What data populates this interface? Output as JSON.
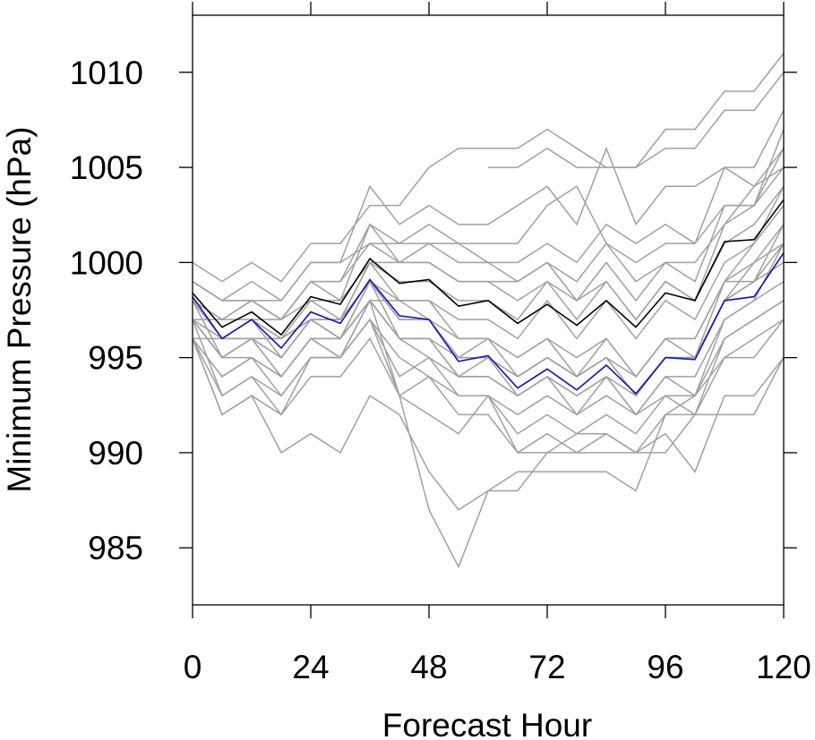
{
  "chart_data": {
    "type": "line",
    "title": "",
    "xlabel": "Forecast Hour",
    "ylabel": "Minimum Pressure (hPa)",
    "xlim": [
      0,
      120
    ],
    "ylim": [
      982,
      1013
    ],
    "x_ticks": [
      0,
      24,
      48,
      72,
      96,
      120
    ],
    "y_ticks": [
      985,
      990,
      995,
      1000,
      1005,
      1010
    ],
    "grid": false,
    "legend": "none",
    "x": [
      0,
      6,
      12,
      18,
      24,
      30,
      36,
      42,
      48,
      54,
      60,
      66,
      72,
      78,
      84,
      90,
      96,
      102,
      108,
      114,
      120
    ],
    "colors": {
      "ensemble": "#a0a0a0",
      "black_series": "#000000",
      "blue_series": "#1010c8",
      "axis": "#000000"
    },
    "series": [
      {
        "color": "black",
        "values": [
          998.4,
          996.6,
          997.4,
          996.2,
          998.2,
          997.8,
          1000.2,
          998.9,
          999.1,
          997.7,
          998.0,
          996.8,
          997.8,
          996.7,
          998.0,
          996.6,
          998.4,
          998.0,
          1001.1,
          1001.2,
          1003.3
        ]
      },
      {
        "color": "blue",
        "values": [
          998.2,
          996.0,
          997.0,
          995.5,
          997.4,
          996.8,
          999.1,
          997.2,
          997.0,
          994.8,
          995.1,
          993.4,
          994.4,
          993.3,
          994.6,
          993.1,
          995.0,
          994.9,
          998.0,
          998.2,
          1000.5
        ]
      },
      {
        "color": "gray",
        "values": [
          1000,
          999,
          1000,
          999,
          1001,
          1001,
          1003,
          1003,
          1005,
          1006,
          1006,
          1006,
          1007,
          1006,
          1005,
          1005,
          1007,
          1007,
          1009,
          1009,
          1011
        ]
      },
      {
        "color": "gray",
        "values": [
          null,
          null,
          null,
          null,
          null,
          null,
          null,
          null,
          null,
          null,
          1005,
          1005,
          1006,
          1005,
          1005,
          1005,
          1006,
          1006,
          1008,
          1008,
          1010
        ]
      },
      {
        "color": "gray",
        "values": [
          999,
          998,
          998,
          998,
          1000,
          1000,
          1004,
          1002,
          1003,
          1002,
          1002,
          1003,
          1004,
          1002,
          1006,
          1002,
          1004,
          1004,
          1005,
          1005,
          1008
        ]
      },
      {
        "color": "gray",
        "values": [
          998,
          997,
          997,
          997,
          999,
          999,
          1002,
          1001,
          1001,
          1001,
          1001,
          1001,
          1003,
          1004,
          1001,
          1000,
          1001,
          1001,
          1003,
          1003,
          1007
        ]
      },
      {
        "color": "gray",
        "values": [
          999,
          998,
          999,
          998,
          1000,
          1000,
          1001,
          1001,
          1002,
          1001,
          1000,
          1000,
          1001,
          1000,
          1002,
          1001,
          1002,
          1001,
          1005,
          1004,
          1006
        ]
      },
      {
        "color": "gray",
        "values": [
          997,
          997,
          998,
          997,
          999,
          999,
          1001,
          1000,
          1000,
          999,
          999,
          999,
          1000,
          999,
          1001,
          999,
          1000,
          999,
          1003,
          1003,
          1005
        ]
      },
      {
        "color": "gray",
        "values": [
          998,
          997,
          998,
          997,
          998,
          998,
          1000,
          1000,
          1001,
          1000,
          1000,
          999,
          1000,
          998,
          1000,
          998,
          1000,
          1000,
          1002,
          1004,
          1005
        ]
      },
      {
        "color": "gray",
        "values": [
          997,
          996,
          997,
          996,
          998,
          997,
          1000,
          999,
          999,
          998,
          998,
          997,
          999,
          997,
          999,
          997,
          999,
          998,
          1001,
          1002,
          1004
        ]
      },
      {
        "color": "gray",
        "values": [
          996,
          996,
          996,
          996,
          997,
          996,
          999,
          998,
          998,
          997,
          997,
          996,
          998,
          996,
          998,
          996,
          998,
          997,
          1000,
          1001,
          1003
        ]
      },
      {
        "color": "gray",
        "values": [
          999,
          998,
          998,
          997,
          999,
          998,
          1002,
          1000,
          1000,
          999,
          999,
          998,
          999,
          998,
          999,
          997,
          999,
          998,
          1002,
          1003,
          1006
        ]
      },
      {
        "color": "gray",
        "values": [
          998,
          996,
          997,
          995,
          997,
          997,
          1000,
          998,
          998,
          996,
          996,
          995,
          996,
          995,
          996,
          994,
          996,
          996,
          999,
          1001,
          1004
        ]
      },
      {
        "color": "gray",
        "values": [
          997,
          995,
          996,
          994,
          996,
          996,
          999,
          997,
          997,
          995,
          995,
          994,
          995,
          994,
          995,
          993,
          995,
          995,
          998,
          1000,
          1002
        ]
      },
      {
        "color": "gray",
        "values": [
          997,
          996,
          996,
          995,
          997,
          996,
          998,
          998,
          997,
          996,
          996,
          995,
          996,
          994,
          996,
          994,
          996,
          996,
          999,
          1000,
          1001
        ]
      },
      {
        "color": "gray",
        "values": [
          996,
          994,
          995,
          994,
          996,
          996,
          998,
          996,
          996,
          994,
          994,
          993,
          994,
          993,
          994,
          992,
          994,
          994,
          997,
          998,
          999
        ]
      },
      {
        "color": "gray",
        "values": [
          998,
          995,
          996,
          994,
          996,
          995,
          997,
          995,
          994,
          993,
          993,
          992,
          993,
          992,
          993,
          992,
          993,
          993,
          996,
          997,
          998
        ]
      },
      {
        "color": "gray",
        "values": [
          996,
          993,
          994,
          993,
          995,
          995,
          997,
          994,
          995,
          993,
          993,
          991,
          992,
          991,
          992,
          991,
          993,
          992,
          996,
          997,
          998
        ]
      },
      {
        "color": "gray",
        "values": [
          997,
          995,
          995,
          994,
          996,
          995,
          998,
          996,
          995,
          994,
          994,
          993,
          994,
          992,
          994,
          992,
          994,
          993,
          997,
          998,
          1001
        ]
      },
      {
        "color": "gray",
        "values": [
          998,
          996,
          996,
          996,
          997,
          997,
          999,
          997,
          997,
          995,
          996,
          994,
          995,
          994,
          995,
          993,
          995,
          995,
          998,
          999,
          1002
        ]
      },
      {
        "color": "gray",
        "values": [
          997,
          993,
          994,
          992,
          995,
          995,
          997,
          993,
          992,
          991,
          993,
          990,
          991,
          990,
          991,
          990,
          992,
          992,
          995,
          996,
          997
        ]
      },
      {
        "color": "gray",
        "values": [
          996,
          992,
          993,
          992,
          994,
          994,
          996,
          993,
          994,
          992,
          992,
          990,
          990,
          990,
          990,
          990,
          991,
          989,
          993,
          993,
          995
        ]
      },
      {
        "color": "gray",
        "values": [
          996,
          992,
          993,
          990,
          991,
          990,
          993,
          992,
          989,
          987,
          988,
          989,
          989,
          989,
          989,
          988,
          992,
          993,
          995,
          995,
          997
        ]
      },
      {
        "color": "gray",
        "values": [
          996,
          994,
          995,
          993,
          995,
          995,
          998,
          993,
          987,
          984,
          988,
          988,
          990,
          991,
          991,
          990,
          990,
          992,
          992,
          992,
          995
        ]
      },
      {
        "color": "gray",
        "values": [
          998,
          996,
          997,
          996,
          997,
          997,
          999,
          996,
          996,
          994,
          995,
          993,
          994,
          993,
          994,
          993,
          995,
          995,
          998,
          999,
          1000
        ]
      },
      {
        "color": "gray",
        "values": [
          997,
          995,
          996,
          995,
          997,
          996,
          998,
          996,
          996,
          995,
          995,
          994,
          995,
          994,
          995,
          994,
          996,
          995,
          999,
          999,
          1001
        ]
      }
    ]
  }
}
